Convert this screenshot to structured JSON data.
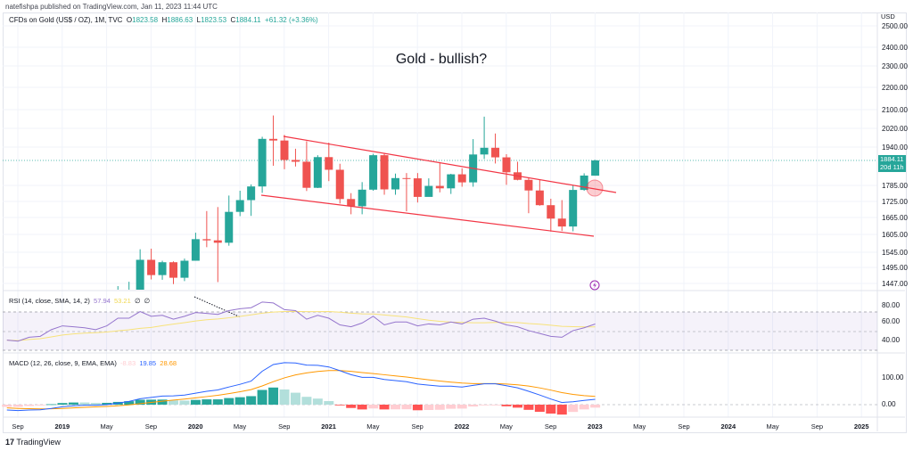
{
  "publisher_line": "natefishpa published on TradingView.com, Jan 11, 2023 11:44 UTC",
  "legend": {
    "symbol": "CFDs on Gold (US$ / OZ), 1M, TVC",
    "o_label": "O",
    "open": "1823.58",
    "h_label": "H",
    "high": "1886.63",
    "l_label": "L",
    "low": "1823.53",
    "c_label": "C",
    "close": "1884.11",
    "change": "+61.32 (+3.36%)"
  },
  "annotation_title": "Gold - bullish?",
  "price_axis": {
    "currency": "USD",
    "ticks": [
      "2500.00",
      "2400.00",
      "2300.00",
      "2200.00",
      "2100.00",
      "2020.00",
      "1940.00",
      "1785.00",
      "1725.00",
      "1665.00",
      "1605.00",
      "1545.00",
      "1495.00",
      "1447.00"
    ],
    "last_price": "1884.11",
    "countdown": "20d 11h"
  },
  "rsi": {
    "label": "RSI (14, close, SMA, 14, 2)",
    "value": "57.94",
    "ma_value": "53.21",
    "extra1": "∅",
    "extra2": "∅",
    "ticks": [
      "80.00",
      "60.00",
      "40.00"
    ]
  },
  "macd": {
    "label": "MACD (12, 26, close, 9, EMA, EMA)",
    "hist_value": "-8.83",
    "macd_value": "19.85",
    "signal_value": "28.68",
    "ticks": [
      "100.00",
      "0.00"
    ]
  },
  "time_axis": [
    {
      "label": "Sep",
      "bold": false
    },
    {
      "label": "2019",
      "bold": true
    },
    {
      "label": "May",
      "bold": false
    },
    {
      "label": "Sep",
      "bold": false
    },
    {
      "label": "2020",
      "bold": true
    },
    {
      "label": "May",
      "bold": false
    },
    {
      "label": "Sep",
      "bold": false
    },
    {
      "label": "2021",
      "bold": true
    },
    {
      "label": "May",
      "bold": false
    },
    {
      "label": "Sep",
      "bold": false
    },
    {
      "label": "2022",
      "bold": true
    },
    {
      "label": "May",
      "bold": false
    },
    {
      "label": "Sep",
      "bold": false
    },
    {
      "label": "2023",
      "bold": true
    },
    {
      "label": "May",
      "bold": false
    },
    {
      "label": "Sep",
      "bold": false
    },
    {
      "label": "2024",
      "bold": true
    },
    {
      "label": "May",
      "bold": false
    },
    {
      "label": "Sep",
      "bold": false
    },
    {
      "label": "2025",
      "bold": true
    }
  ],
  "brand": "TradingView",
  "colors": {
    "up": "#26a69a",
    "down": "#ef5350",
    "rsi": "#9575cd",
    "rsi_ma": "#f7e27a",
    "macd": "#2962ff",
    "signal": "#ff9800",
    "drawing": "#f23645"
  },
  "chart_data": {
    "type": "candlestick",
    "interval": "1M",
    "first_month": "2019-06",
    "ohlc": [
      [
        1311,
        1439,
        1266,
        1409
      ],
      [
        1409,
        1452,
        1381,
        1413
      ],
      [
        1413,
        1555,
        1400,
        1520
      ],
      [
        1520,
        1557,
        1459,
        1472
      ],
      [
        1472,
        1517,
        1458,
        1512
      ],
      [
        1512,
        1515,
        1445,
        1464
      ],
      [
        1464,
        1524,
        1454,
        1517
      ],
      [
        1517,
        1611,
        1517,
        1589
      ],
      [
        1589,
        1689,
        1562,
        1585
      ],
      [
        1585,
        1704,
        1451,
        1577
      ],
      [
        1577,
        1747,
        1567,
        1686
      ],
      [
        1686,
        1765,
        1670,
        1730
      ],
      [
        1730,
        1789,
        1671,
        1781
      ],
      [
        1781,
        1984,
        1757,
        1975
      ],
      [
        1975,
        2075,
        1863,
        1968
      ],
      [
        1968,
        1992,
        1849,
        1886
      ],
      [
        1886,
        1933,
        1860,
        1879
      ],
      [
        1879,
        1965,
        1764,
        1776
      ],
      [
        1776,
        1906,
        1775,
        1898
      ],
      [
        1898,
        1959,
        1802,
        1847
      ],
      [
        1847,
        1871,
        1717,
        1734
      ],
      [
        1734,
        1756,
        1677,
        1707
      ],
      [
        1707,
        1798,
        1677,
        1769
      ],
      [
        1769,
        1912,
        1765,
        1906
      ],
      [
        1906,
        1916,
        1750,
        1770
      ],
      [
        1770,
        1832,
        1750,
        1814
      ],
      [
        1814,
        1834,
        1688,
        1813
      ],
      [
        1813,
        1834,
        1721,
        1742
      ],
      [
        1742,
        1813,
        1746,
        1783
      ],
      [
        1783,
        1877,
        1759,
        1774
      ],
      [
        1774,
        1831,
        1753,
        1829
      ],
      [
        1829,
        1853,
        1780,
        1797
      ],
      [
        1797,
        1974,
        1780,
        1909
      ],
      [
        1909,
        2070,
        1890,
        1937
      ],
      [
        1937,
        1998,
        1872,
        1897
      ],
      [
        1897,
        1910,
        1787,
        1837
      ],
      [
        1837,
        1879,
        1805,
        1807
      ],
      [
        1807,
        1814,
        1681,
        1766
      ],
      [
        1766,
        1807,
        1709,
        1711
      ],
      [
        1711,
        1735,
        1615,
        1661
      ],
      [
        1661,
        1730,
        1617,
        1633
      ],
      [
        1633,
        1786,
        1616,
        1768
      ],
      [
        1768,
        1833,
        1765,
        1824
      ],
      [
        1823.58,
        1886.63,
        1823.53,
        1884.11
      ]
    ],
    "indicator_first_month": "2018-08",
    "rsi": [
      41,
      40,
      44,
      45,
      52,
      56,
      55,
      54,
      52,
      56,
      64,
      64,
      71,
      66,
      67,
      63,
      66,
      70,
      69,
      68,
      72,
      74,
      75,
      81,
      80,
      73,
      72,
      63,
      67,
      64,
      57,
      55,
      59,
      66,
      57,
      60,
      60,
      56,
      58,
      57,
      60,
      58,
      63,
      64,
      61,
      57,
      55,
      51,
      48,
      45,
      44,
      51,
      54,
      57.94
    ],
    "macd": [
      -20,
      -22,
      -20,
      -19,
      -14,
      -8,
      -4,
      -2,
      -2,
      0,
      6,
      12,
      22,
      27,
      32,
      33,
      36,
      43,
      50,
      55,
      66,
      76,
      88,
      125,
      150,
      157,
      156,
      148,
      147,
      141,
      127,
      112,
      102,
      102,
      94,
      90,
      86,
      77,
      73,
      69,
      69,
      66,
      72,
      78,
      78,
      71,
      63,
      50,
      36,
      21,
      8,
      11,
      16,
      19.85
    ],
    "price_scale": {
      "type": "log",
      "range": [
        1400,
        2550
      ]
    },
    "rsi_range": [
      20,
      90
    ],
    "macd_range": [
      -40,
      180
    ]
  }
}
